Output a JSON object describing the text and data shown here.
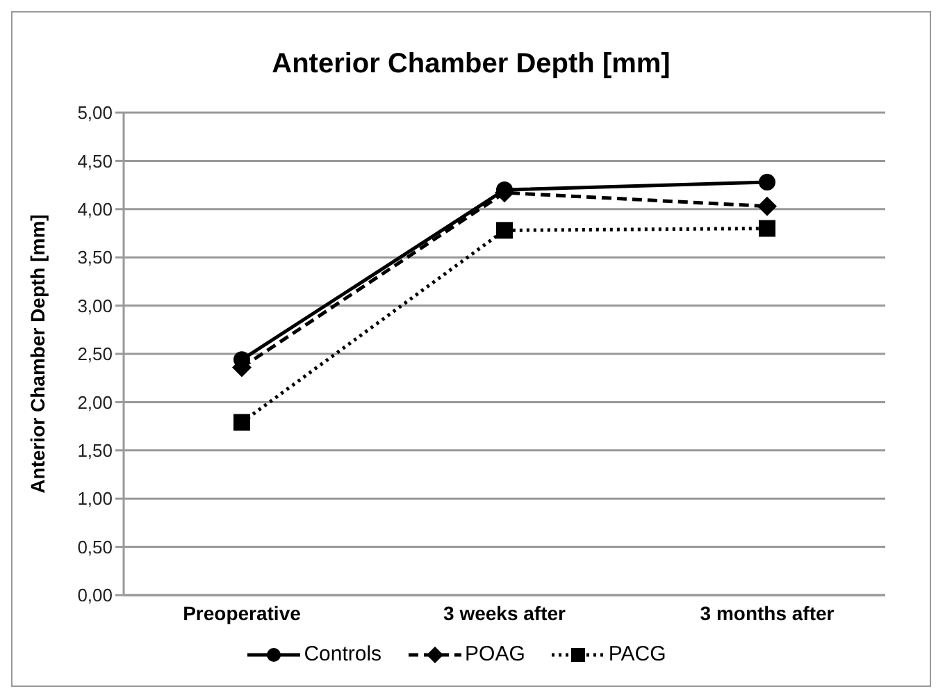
{
  "chart_data": {
    "type": "line",
    "title": "Anterior Chamber Depth [mm]",
    "ylabel": "Anterior Chamber Depth [mm]",
    "categories": [
      "Preoperative",
      "3 weeks after",
      "3 months after"
    ],
    "series": [
      {
        "name": "Controls",
        "color": "#000000",
        "values": [
          2.44,
          4.2,
          4.28
        ],
        "marker": "circle",
        "line_style": "solid"
      },
      {
        "name": "POAG",
        "color": "#000000",
        "values": [
          2.36,
          4.17,
          4.03
        ],
        "marker": "diamond",
        "line_style": "dashed"
      },
      {
        "name": "PACG",
        "color": "#000000",
        "values": [
          1.79,
          3.78,
          3.8
        ],
        "marker": "square",
        "line_style": "dotted"
      }
    ],
    "ylim": [
      0,
      5
    ],
    "yticks": [
      {
        "value": 0,
        "label": "0,00"
      },
      {
        "value": 0.5,
        "label": "0,50"
      },
      {
        "value": 1,
        "label": "1,00"
      },
      {
        "value": 1.5,
        "label": "1,50"
      },
      {
        "value": 2,
        "label": "2,00"
      },
      {
        "value": 2.5,
        "label": "2,50"
      },
      {
        "value": 3,
        "label": "3,00"
      },
      {
        "value": 3.5,
        "label": "3,50"
      },
      {
        "value": 4,
        "label": "4,00"
      },
      {
        "value": 4.5,
        "label": "4,50"
      },
      {
        "value": 5,
        "label": "5,00"
      }
    ],
    "grid": "y",
    "legend": "bottom"
  }
}
